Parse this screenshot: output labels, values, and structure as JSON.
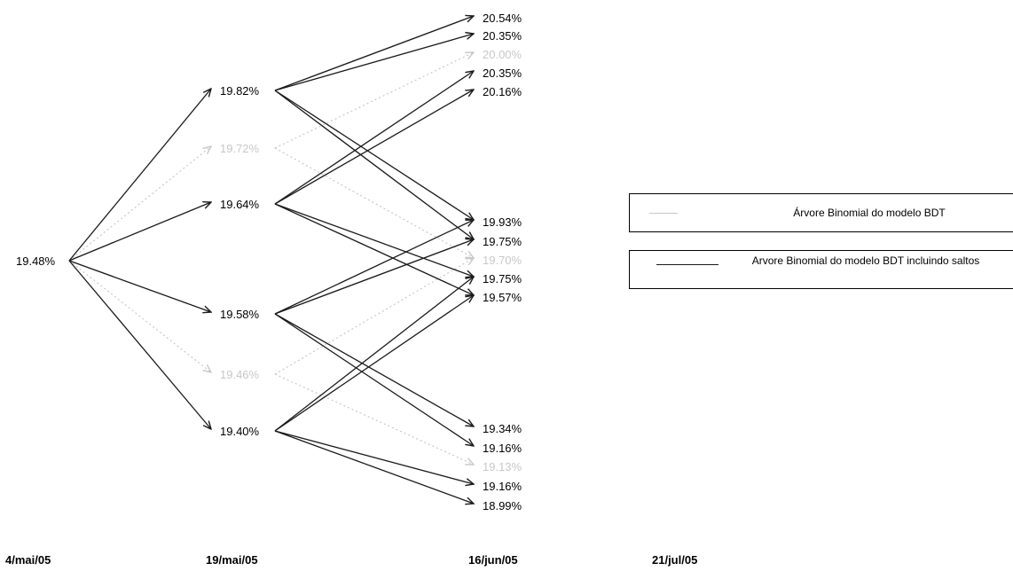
{
  "colors": {
    "jump_tree": "#1a1a1a",
    "bdt_tree": "#c8c8c8",
    "background": "#ffffff"
  },
  "dates": [
    "4/mai/05",
    "19/mai/05",
    "16/jun/05",
    "21/jul/05"
  ],
  "legend": {
    "bdt": "Árvore Binomial do modelo BDT",
    "jumps": "Arvore Binomial do modelo BDT incluindo saltos"
  },
  "nodes": [
    {
      "id": "root",
      "label": "19.48%",
      "tree": "jumps"
    },
    {
      "id": "j1a",
      "label": "19.82%",
      "tree": "jumps"
    },
    {
      "id": "j1b",
      "label": "19.64%",
      "tree": "jumps"
    },
    {
      "id": "j1c",
      "label": "19.58%",
      "tree": "jumps"
    },
    {
      "id": "j1d",
      "label": "19.40%",
      "tree": "jumps"
    },
    {
      "id": "b1a",
      "label": "19.72%",
      "tree": "bdt"
    },
    {
      "id": "b1b",
      "label": "19.46%",
      "tree": "bdt"
    },
    {
      "id": "j2a",
      "label": "20.54%",
      "tree": "jumps"
    },
    {
      "id": "j2b",
      "label": "20.35%",
      "tree": "jumps"
    },
    {
      "id": "b2a",
      "label": "20.00%",
      "tree": "bdt"
    },
    {
      "id": "j2c",
      "label": "20.35%",
      "tree": "jumps"
    },
    {
      "id": "j2d",
      "label": "20.16%",
      "tree": "jumps"
    },
    {
      "id": "j2e",
      "label": "19.93%",
      "tree": "jumps"
    },
    {
      "id": "j2f",
      "label": "19.75%",
      "tree": "jumps"
    },
    {
      "id": "b2b",
      "label": "19.70%",
      "tree": "bdt"
    },
    {
      "id": "j2g",
      "label": "19.75%",
      "tree": "jumps"
    },
    {
      "id": "j2h",
      "label": "19.57%",
      "tree": "jumps"
    },
    {
      "id": "j2i",
      "label": "19.34%",
      "tree": "jumps"
    },
    {
      "id": "j2j",
      "label": "19.16%",
      "tree": "jumps"
    },
    {
      "id": "b2c",
      "label": "19.13%",
      "tree": "bdt"
    },
    {
      "id": "j2k",
      "label": "19.16%",
      "tree": "jumps"
    },
    {
      "id": "j2l",
      "label": "18.99%",
      "tree": "jumps"
    }
  ],
  "edges": [
    {
      "from": "root",
      "to": "j1a",
      "tree": "jumps"
    },
    {
      "from": "root",
      "to": "j1b",
      "tree": "jumps"
    },
    {
      "from": "root",
      "to": "j1c",
      "tree": "jumps"
    },
    {
      "from": "root",
      "to": "j1d",
      "tree": "jumps"
    },
    {
      "from": "root",
      "to": "b1a",
      "tree": "bdt"
    },
    {
      "from": "root",
      "to": "b1b",
      "tree": "bdt"
    },
    {
      "from": "j1a",
      "to": "j2a",
      "tree": "jumps"
    },
    {
      "from": "j1a",
      "to": "j2b",
      "tree": "jumps"
    },
    {
      "from": "j1a",
      "to": "j2e",
      "tree": "jumps"
    },
    {
      "from": "j1a",
      "to": "j2f",
      "tree": "jumps"
    },
    {
      "from": "j1b",
      "to": "j2c",
      "tree": "jumps"
    },
    {
      "from": "j1b",
      "to": "j2d",
      "tree": "jumps"
    },
    {
      "from": "j1b",
      "to": "j2g",
      "tree": "jumps"
    },
    {
      "from": "j1b",
      "to": "j2h",
      "tree": "jumps"
    },
    {
      "from": "j1c",
      "to": "j2e",
      "tree": "jumps"
    },
    {
      "from": "j1c",
      "to": "j2f",
      "tree": "jumps"
    },
    {
      "from": "j1c",
      "to": "j2i",
      "tree": "jumps"
    },
    {
      "from": "j1c",
      "to": "j2j",
      "tree": "jumps"
    },
    {
      "from": "j1d",
      "to": "j2g",
      "tree": "jumps"
    },
    {
      "from": "j1d",
      "to": "j2h",
      "tree": "jumps"
    },
    {
      "from": "j1d",
      "to": "j2k",
      "tree": "jumps"
    },
    {
      "from": "j1d",
      "to": "j2l",
      "tree": "jumps"
    },
    {
      "from": "b1a",
      "to": "b2a",
      "tree": "bdt"
    },
    {
      "from": "b1a",
      "to": "b2b",
      "tree": "bdt"
    },
    {
      "from": "b1b",
      "to": "b2b",
      "tree": "bdt"
    },
    {
      "from": "b1b",
      "to": "b2c",
      "tree": "bdt"
    }
  ]
}
